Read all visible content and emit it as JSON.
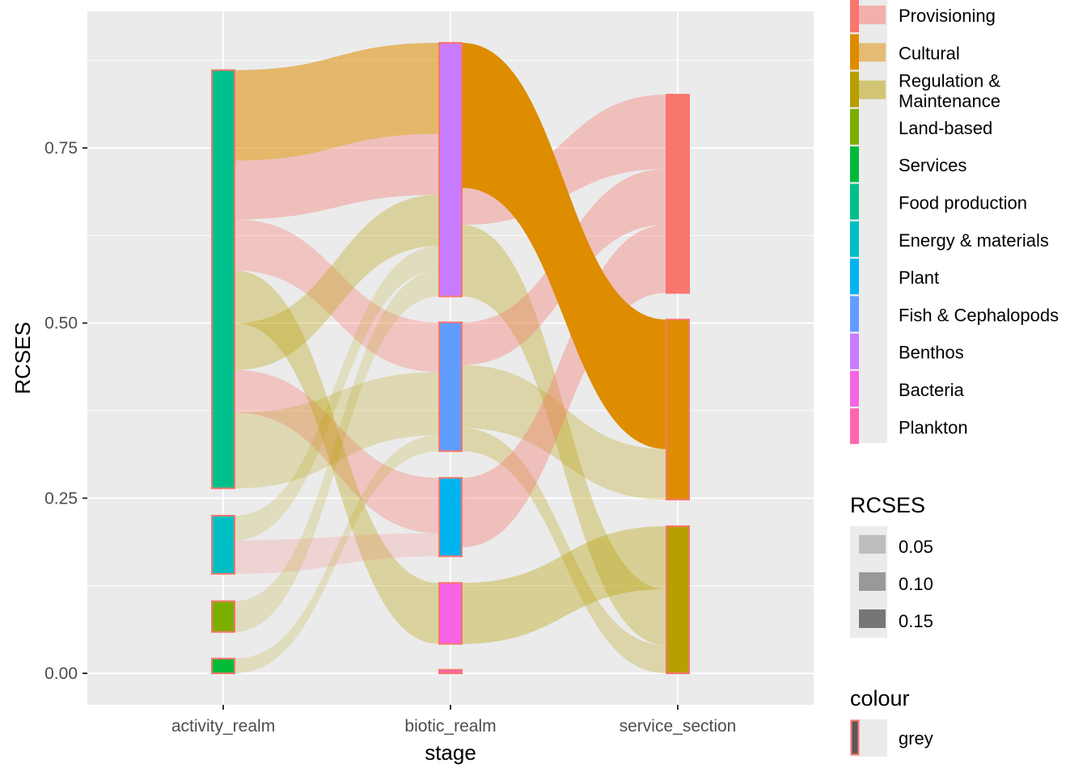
{
  "chart_data": {
    "type": "alluvial",
    "xlabel": "stage",
    "ylabel": "RCSES",
    "ylim": [
      -0.088,
      0.947
    ],
    "y_ticks": [
      {
        "value": 0,
        "label": "0.00"
      },
      {
        "value": 0.25,
        "label": "0.25"
      },
      {
        "value": 0.5,
        "label": "0.50"
      },
      {
        "value": 0.75,
        "label": "0.75"
      }
    ],
    "axes": [
      "activity_realm",
      "biotic_realm",
      "service_section"
    ],
    "strata": [
      {
        "axis": 0,
        "name": "Food production",
        "ymin": 0.264,
        "ymax": 0.861
      },
      {
        "axis": 0,
        "name": "Energy & materials",
        "ymin": 0.142,
        "ymax": 0.225
      },
      {
        "axis": 0,
        "name": "Land-based",
        "ymin": 0.059,
        "ymax": 0.103
      },
      {
        "axis": 0,
        "name": "Services",
        "ymin": 0.0,
        "ymax": 0.021
      },
      {
        "axis": 1,
        "name": "Benthos",
        "ymin": 0.538,
        "ymax": 0.9
      },
      {
        "axis": 1,
        "name": "Fish & Cephalopods",
        "ymin": 0.317,
        "ymax": 0.501
      },
      {
        "axis": 1,
        "name": "Plant",
        "ymin": 0.167,
        "ymax": 0.279
      },
      {
        "axis": 1,
        "name": "Bacteria",
        "ymin": 0.042,
        "ymax": 0.129
      },
      {
        "axis": 1,
        "name": "Plankton",
        "ymin": 0.0,
        "ymax": 0.005
      },
      {
        "axis": 2,
        "name": "Provisioning",
        "ymin": 0.543,
        "ymax": 0.826
      },
      {
        "axis": 2,
        "name": "Cultural",
        "ymin": 0.248,
        "ymax": 0.505
      },
      {
        "axis": 2,
        "name": "Regulation & Maintenance",
        "ymin": 0.0,
        "ymax": 0.21
      }
    ],
    "flows": [
      {
        "from": 0,
        "a": [
          0.648,
          0.575
        ],
        "b": [
          0.501,
          0.43
        ],
        "fill": "Provisioning",
        "rcses": 0.05
      },
      {
        "from": 0,
        "a": [
          0.433,
          0.372
        ],
        "b": [
          0.279,
          0.2
        ],
        "fill": "Provisioning",
        "rcses": 0.05
      },
      {
        "from": 0,
        "a": [
          0.575,
          0.5
        ],
        "b": [
          0.129,
          0.042
        ],
        "fill": "Regulation & Maintenance",
        "rcses": 0.05
      },
      {
        "from": 0,
        "a": [
          0.5,
          0.433
        ],
        "b": [
          0.683,
          0.61
        ],
        "fill": "Regulation & Maintenance",
        "rcses": 0.05
      },
      {
        "from": 0,
        "a": [
          0.372,
          0.315
        ],
        "b": [
          0.43,
          0.38
        ],
        "fill": "Regulation & Maintenance",
        "rcses": 0.03
      },
      {
        "from": 0,
        "a": [
          0.315,
          0.264
        ],
        "b": [
          0.38,
          0.34
        ],
        "fill": "Regulation & Maintenance",
        "rcses": 0.03
      },
      {
        "from": 0,
        "a": [
          0.225,
          0.19
        ],
        "b": [
          0.61,
          0.575
        ],
        "fill": "Regulation & Maintenance",
        "rcses": 0.02
      },
      {
        "from": 0,
        "a": [
          0.19,
          0.142
        ],
        "b": [
          0.2,
          0.167
        ],
        "fill": "Provisioning",
        "rcses": 0.02
      },
      {
        "from": 0,
        "a": [
          0.103,
          0.059
        ],
        "b": [
          0.575,
          0.538
        ],
        "fill": "Regulation & Maintenance",
        "rcses": 0.02
      },
      {
        "from": 0,
        "a": [
          0.021,
          0.0
        ],
        "b": [
          0.34,
          0.317
        ],
        "fill": "Regulation & Maintenance",
        "rcses": 0.02
      },
      {
        "from": 0,
        "a": [
          0.732,
          0.648
        ],
        "b": [
          0.77,
          0.683
        ],
        "fill": "Provisioning",
        "rcses": 0.06
      },
      {
        "from": 0,
        "a": [
          0.861,
          0.732
        ],
        "b": [
          0.9,
          0.77
        ],
        "fill": "Cultural",
        "rcses": 0.1
      },
      {
        "from": 1,
        "a": [
          0.64,
          0.538
        ],
        "b": [
          0.12,
          0.04
        ],
        "fill": "Regulation & Maintenance",
        "rcses": 0.05
      },
      {
        "from": 1,
        "a": [
          0.129,
          0.042
        ],
        "b": [
          0.21,
          0.12
        ],
        "fill": "Regulation & Maintenance",
        "rcses": 0.06
      },
      {
        "from": 1,
        "a": [
          0.35,
          0.317
        ],
        "b": [
          0.04,
          0.0
        ],
        "fill": "Regulation & Maintenance",
        "rcses": 0.04
      },
      {
        "from": 1,
        "a": [
          0.44,
          0.35
        ],
        "b": [
          0.32,
          0.248
        ],
        "fill": "Regulation & Maintenance",
        "rcses": 0.04
      },
      {
        "from": 1,
        "a": [
          0.693,
          0.64
        ],
        "b": [
          0.826,
          0.72
        ],
        "fill": "Provisioning",
        "rcses": 0.06
      },
      {
        "from": 1,
        "a": [
          0.501,
          0.44
        ],
        "b": [
          0.72,
          0.64
        ],
        "fill": "Provisioning",
        "rcses": 0.06
      },
      {
        "from": 1,
        "a": [
          0.279,
          0.18
        ],
        "b": [
          0.64,
          0.543
        ],
        "fill": "Provisioning",
        "rcses": 0.06
      },
      {
        "from": 1,
        "a": [
          0.9,
          0.693
        ],
        "b": [
          0.505,
          0.32
        ],
        "fill": "Cultural",
        "rcses": 0.2
      }
    ]
  },
  "colors": {
    "Provisioning": "#F8766D",
    "Cultural": "#DE8C00",
    "Regulation & Maintenance": "#B79F00",
    "Land-based": "#7CAE00",
    "Services": "#00BA38",
    "Food production": "#00C08B",
    "Energy & materials": "#00BFC4",
    "Plant": "#00B4F0",
    "Fish & Cephalopods": "#619CFF",
    "Benthos": "#C77CFF",
    "Bacteria": "#F564E3",
    "Plankton": "#FF64B0"
  },
  "legend_fill": {
    "items": [
      {
        "key": "Provisioning",
        "line1": "Provisioning",
        "line2": ""
      },
      {
        "key": "Cultural",
        "line1": "Cultural",
        "line2": ""
      },
      {
        "key": "Regulation & Maintenance",
        "line1": "Regulation &",
        "line2": "Maintenance"
      },
      {
        "key": "Land-based",
        "line1": "Land-based",
        "line2": ""
      },
      {
        "key": "Services",
        "line1": "Services",
        "line2": ""
      },
      {
        "key": "Food production",
        "line1": "Food production",
        "line2": ""
      },
      {
        "key": "Energy & materials",
        "line1": "Energy & materials",
        "line2": ""
      },
      {
        "key": "Plant",
        "line1": "Plant",
        "line2": ""
      },
      {
        "key": "Fish & Cephalopods",
        "line1": "Fish & Cephalopods",
        "line2": ""
      },
      {
        "key": "Benthos",
        "line1": "Benthos",
        "line2": ""
      },
      {
        "key": "Bacteria",
        "line1": "Bacteria",
        "line2": ""
      },
      {
        "key": "Plankton",
        "line1": "Plankton",
        "line2": ""
      }
    ]
  },
  "legend_alpha": {
    "title": "RCSES",
    "items": [
      "0.05",
      "0.10",
      "0.15"
    ]
  },
  "legend_colour": {
    "title": "colour",
    "item": "grey"
  }
}
